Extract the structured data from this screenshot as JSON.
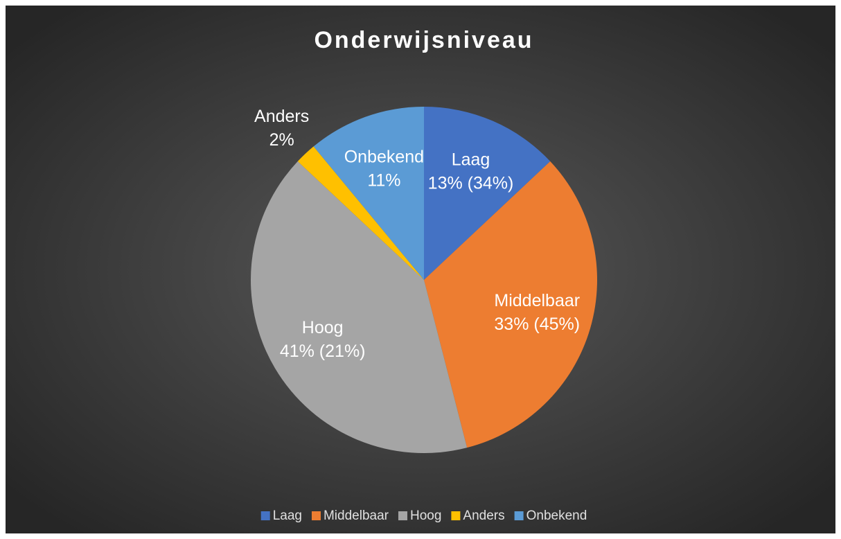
{
  "chart_data": {
    "type": "pie",
    "title": "Onderwijsniveau",
    "categories": [
      "Laag",
      "Middelbaar",
      "Hoog",
      "Anders",
      "Onbekend"
    ],
    "values": [
      13,
      33,
      41,
      2,
      11
    ],
    "value_labels": [
      "13% (34%)",
      "33% (45%)",
      "41% (21%)",
      "2%",
      "11%"
    ],
    "colors": [
      "#4472c4",
      "#ed7d31",
      "#a5a5a5",
      "#ffc000",
      "#5b9bd5"
    ],
    "legend": "bottom"
  }
}
